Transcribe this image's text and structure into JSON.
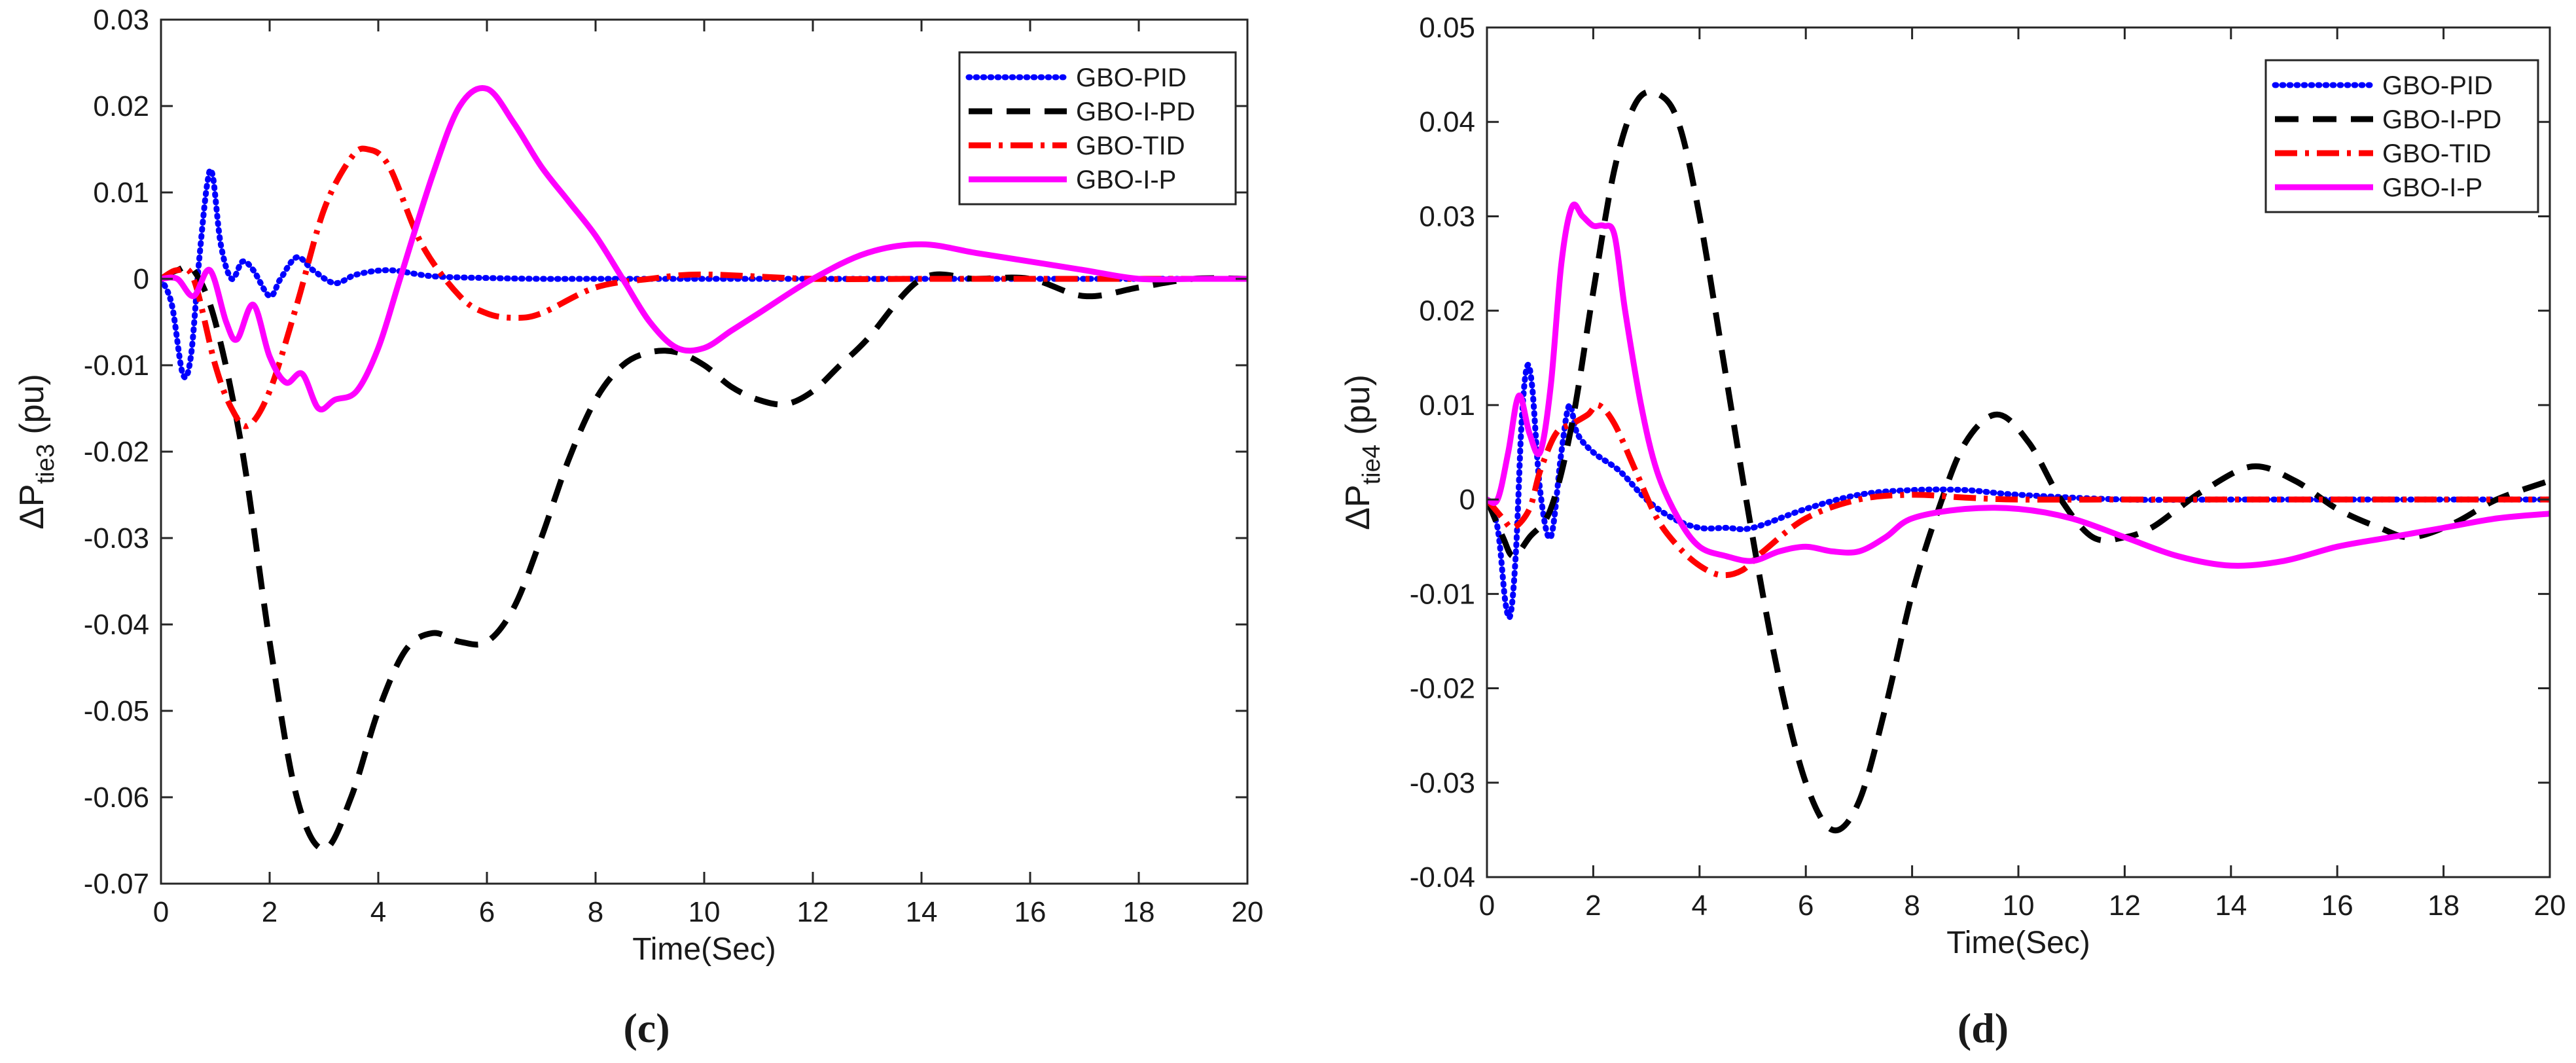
{
  "chart_data": [
    {
      "type": "line",
      "caption": "(c)",
      "xlabel": "Time(Sec)",
      "ylabel_main": "ΔP",
      "ylabel_sub": "tie3",
      "ylabel_unit": " (pu)",
      "xlim": [
        0,
        20
      ],
      "ylim": [
        -0.07,
        0.03
      ],
      "xticks": [
        0,
        2,
        4,
        6,
        8,
        10,
        12,
        14,
        16,
        18,
        20
      ],
      "yticks": [
        -0.07,
        -0.06,
        -0.05,
        -0.04,
        -0.03,
        -0.02,
        -0.01,
        0,
        0.01,
        0.02,
        0.03
      ],
      "ytick_labels": [
        "-0.07",
        "-0.06",
        "-0.05",
        "-0.04",
        "-0.03",
        "-0.02",
        "-0.01",
        "0",
        "0.01",
        "0.02",
        "0.03"
      ],
      "legend_position": "top-right",
      "series": [
        {
          "name": "GBO-PID",
          "color": "#0000ff",
          "style": "dotted",
          "x": [
            0,
            0.2,
            0.4,
            0.55,
            0.7,
            0.85,
            0.95,
            1.1,
            1.3,
            1.5,
            1.7,
            2.0,
            2.2,
            2.5,
            2.8,
            3.2,
            3.6,
            4.2,
            5,
            6,
            7,
            8,
            10,
            12,
            14,
            16,
            18,
            20
          ],
          "y": [
            0,
            -0.003,
            -0.011,
            -0.009,
            0.002,
            0.011,
            0.012,
            0.004,
            0.0,
            0.002,
            0.001,
            -0.002,
            0.0,
            0.0025,
            0.001,
            -0.0005,
            0.0005,
            0.001,
            0.0003,
            0.0001,
            0,
            0,
            0,
            0,
            0,
            0,
            0,
            0
          ]
        },
        {
          "name": "GBO-I-PD",
          "color": "#000000",
          "style": "dashed",
          "x": [
            0,
            0.3,
            0.6,
            1.0,
            1.5,
            2.0,
            2.5,
            3.0,
            3.5,
            4.0,
            4.5,
            5.0,
            5.5,
            6.0,
            6.5,
            7.0,
            7.5,
            8.0,
            8.5,
            9.0,
            9.5,
            10,
            10.5,
            11,
            11.5,
            12,
            12.5,
            13,
            14,
            15,
            16,
            17,
            18,
            19,
            20
          ],
          "y": [
            0,
            0.001,
            0.001,
            -0.005,
            -0.02,
            -0.042,
            -0.06,
            -0.066,
            -0.06,
            -0.05,
            -0.043,
            -0.041,
            -0.042,
            -0.042,
            -0.038,
            -0.03,
            -0.021,
            -0.014,
            -0.01,
            -0.0085,
            -0.0085,
            -0.01,
            -0.0125,
            -0.014,
            -0.0145,
            -0.013,
            -0.01,
            -0.007,
            0.0,
            0.0,
            0.0,
            -0.002,
            -0.001,
            0.0,
            0.0
          ]
        },
        {
          "name": "GBO-TID",
          "color": "#ff0000",
          "style": "dashdot",
          "x": [
            0,
            0.3,
            0.6,
            1.0,
            1.3,
            1.6,
            2.0,
            2.5,
            3.0,
            3.5,
            3.8,
            4.2,
            4.8,
            5.5,
            6.0,
            6.5,
            7.0,
            8.0,
            9.0,
            10,
            12,
            14,
            16,
            18,
            20
          ],
          "y": [
            0,
            0.001,
            0.0,
            -0.01,
            -0.015,
            -0.017,
            -0.013,
            -0.003,
            0.008,
            0.014,
            0.015,
            0.013,
            0.004,
            -0.002,
            -0.004,
            -0.0045,
            -0.004,
            -0.001,
            0.0,
            0.0005,
            0.0,
            0.0,
            0.0,
            0.0,
            0.0
          ]
        },
        {
          "name": "GBO-I-P",
          "color": "#ff00ff",
          "style": "solid",
          "x": [
            0,
            0.3,
            0.6,
            0.9,
            1.2,
            1.4,
            1.7,
            2.0,
            2.3,
            2.6,
            2.9,
            3.2,
            3.6,
            4.0,
            4.4,
            5.0,
            5.5,
            6.0,
            6.5,
            7.0,
            7.5,
            8.0,
            8.5,
            9.0,
            9.5,
            10,
            10.5,
            11,
            12,
            13,
            14,
            15,
            16,
            17,
            18,
            19,
            20
          ],
          "y": [
            0,
            0.0,
            -0.002,
            0.001,
            -0.005,
            -0.007,
            -0.003,
            -0.009,
            -0.012,
            -0.011,
            -0.015,
            -0.014,
            -0.013,
            -0.008,
            0.0,
            0.012,
            0.02,
            0.022,
            0.018,
            0.013,
            0.009,
            0.005,
            0.0,
            -0.005,
            -0.008,
            -0.008,
            -0.006,
            -0.004,
            0.0,
            0.003,
            0.004,
            0.003,
            0.002,
            0.001,
            0.0,
            0.0,
            0.0
          ]
        }
      ]
    },
    {
      "type": "line",
      "caption": "(d)",
      "xlabel": "Time(Sec)",
      "ylabel_main": "ΔP",
      "ylabel_sub": "tie4",
      "ylabel_unit": " (pu)",
      "xlim": [
        0,
        20
      ],
      "ylim": [
        -0.04,
        0.05
      ],
      "xticks": [
        0,
        2,
        4,
        6,
        8,
        10,
        12,
        14,
        16,
        18,
        20
      ],
      "yticks": [
        -0.04,
        -0.03,
        -0.02,
        -0.01,
        0,
        0.01,
        0.02,
        0.03,
        0.04,
        0.05
      ],
      "ytick_labels": [
        "-0.04",
        "-0.03",
        "-0.02",
        "-0.01",
        "0",
        "0.01",
        "0.02",
        "0.03",
        "0.04",
        "0.05"
      ],
      "legend_position": "top-right",
      "series": [
        {
          "name": "GBO-PID",
          "color": "#0000ff",
          "style": "dotted",
          "x": [
            0,
            0.2,
            0.35,
            0.45,
            0.55,
            0.65,
            0.75,
            0.85,
            1.0,
            1.2,
            1.4,
            1.55,
            1.7,
            2.0,
            2.5,
            3.0,
            3.5,
            4.0,
            4.5,
            5.0,
            6.0,
            7.0,
            8.0,
            9.0,
            10,
            12,
            14,
            16,
            18,
            20
          ],
          "y": [
            0,
            -0.003,
            -0.011,
            -0.012,
            -0.005,
            0.008,
            0.014,
            0.012,
            0.001,
            -0.004,
            0.005,
            0.01,
            0.007,
            0.005,
            0.003,
            0.0,
            -0.002,
            -0.003,
            -0.003,
            -0.003,
            -0.001,
            0.0005,
            0.001,
            0.001,
            0.0005,
            0.0,
            0.0,
            0.0,
            0.0,
            0.0
          ]
        },
        {
          "name": "GBO-I-PD",
          "color": "#000000",
          "style": "dashed",
          "x": [
            0,
            0.3,
            0.5,
            0.8,
            1.2,
            1.6,
            2.0,
            2.4,
            2.8,
            3.2,
            3.6,
            4.0,
            4.5,
            5.0,
            5.5,
            6.0,
            6.5,
            7.0,
            7.5,
            8.0,
            8.5,
            9.0,
            9.6,
            10.2,
            10.8,
            11.4,
            12.0,
            12.5,
            13,
            13.5,
            14.4,
            15.2,
            16,
            16.8,
            17.4,
            18.2,
            19,
            20
          ],
          "y": [
            0,
            -0.004,
            -0.006,
            -0.004,
            -0.001,
            0.008,
            0.022,
            0.035,
            0.042,
            0.043,
            0.04,
            0.03,
            0.013,
            -0.004,
            -0.019,
            -0.03,
            -0.035,
            -0.032,
            -0.022,
            -0.01,
            -0.001,
            0.006,
            0.009,
            0.006,
            0.0,
            -0.004,
            -0.004,
            -0.003,
            -0.001,
            0.001,
            0.0035,
            0.002,
            -0.001,
            -0.003,
            -0.004,
            -0.0025,
            0.0,
            0.002
          ]
        },
        {
          "name": "GBO-TID",
          "color": "#ff0000",
          "style": "dashdot",
          "x": [
            0,
            0.3,
            0.5,
            0.8,
            1.0,
            1.3,
            1.6,
            1.9,
            2.1,
            2.4,
            2.8,
            3.2,
            3.6,
            4.0,
            4.4,
            4.8,
            5.2,
            6.0,
            7.0,
            8.0,
            9.0,
            10,
            12,
            14,
            16,
            18,
            20
          ],
          "y": [
            0,
            -0.002,
            -0.003,
            -0.001,
            0.003,
            0.007,
            0.008,
            0.009,
            0.01,
            0.008,
            0.003,
            -0.002,
            -0.005,
            -0.007,
            -0.008,
            -0.0075,
            -0.0055,
            -0.002,
            0.0,
            0.0005,
            0.0002,
            0.0,
            0.0,
            0.0,
            0.0,
            0.0,
            0.0
          ]
        },
        {
          "name": "GBO-I-P",
          "color": "#ff00ff",
          "style": "solid",
          "x": [
            0,
            0.2,
            0.4,
            0.6,
            0.8,
            1.0,
            1.2,
            1.4,
            1.6,
            1.8,
            2.0,
            2.2,
            2.4,
            2.6,
            2.9,
            3.2,
            3.6,
            4.0,
            4.5,
            5.0,
            5.5,
            6.0,
            6.5,
            7.0,
            7.5,
            8.0,
            9.0,
            10,
            11,
            12,
            13,
            14,
            15,
            16,
            17,
            18,
            19,
            20
          ],
          "y": [
            0,
            0.0,
            0.005,
            0.011,
            0.007,
            0.005,
            0.012,
            0.025,
            0.031,
            0.03,
            0.029,
            0.029,
            0.028,
            0.02,
            0.01,
            0.003,
            -0.002,
            -0.005,
            -0.006,
            -0.0065,
            -0.0055,
            -0.005,
            -0.0055,
            -0.0055,
            -0.004,
            -0.002,
            -0.001,
            -0.001,
            -0.002,
            -0.004,
            -0.006,
            -0.007,
            -0.0065,
            -0.005,
            -0.004,
            -0.003,
            -0.002,
            -0.0015
          ]
        }
      ]
    }
  ]
}
